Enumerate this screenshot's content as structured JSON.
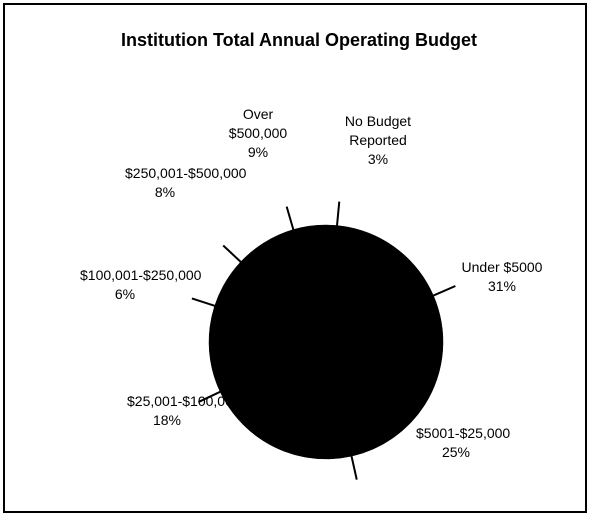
{
  "chart_data": {
    "type": "pie",
    "title": "Institution Total Annual Operating Budget",
    "categories": [
      "No Budget Reported",
      "Under $5000",
      "$5001-$25,000",
      "$25,001-$100,000",
      "$100,001-$250,000",
      "$250,001-$500,000",
      "Over $500,000"
    ],
    "values": [
      3,
      31,
      25,
      18,
      6,
      8,
      9
    ],
    "value_labels": [
      "3%",
      "31%",
      "25%",
      "18%",
      "6%",
      "8%",
      "9%"
    ],
    "color": "#000000"
  }
}
